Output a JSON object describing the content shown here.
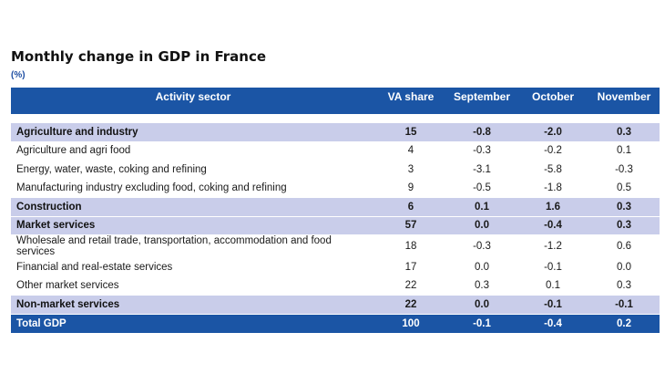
{
  "title": "Monthly change in GDP in France",
  "unit": "(%)",
  "table": {
    "headers": [
      "Activity sector",
      "VA share",
      "September",
      "October",
      "November"
    ],
    "rows": [
      {
        "kind": "group",
        "label": "Agriculture and industry",
        "va": "15",
        "sep": "-0.8",
        "oct": "-2.0",
        "nov": "0.3"
      },
      {
        "kind": "sub",
        "label": "Agriculture and agri food",
        "va": "4",
        "sep": "-0.3",
        "oct": "-0.2",
        "nov": "0.1"
      },
      {
        "kind": "sub",
        "label": "Energy, water, waste, coking and refining",
        "va": "3",
        "sep": "-3.1",
        "oct": "-5.8",
        "nov": "-0.3"
      },
      {
        "kind": "sub",
        "label": "Manufacturing industry excluding food, coking and refining",
        "va": "9",
        "sep": "-0.5",
        "oct": "-1.8",
        "nov": "0.5"
      },
      {
        "kind": "group",
        "label": "Construction",
        "va": "6",
        "sep": "0.1",
        "oct": "1.6",
        "nov": "0.3"
      },
      {
        "kind": "group",
        "label": "Market services",
        "va": "57",
        "sep": "0.0",
        "oct": "-0.4",
        "nov": "0.3"
      },
      {
        "kind": "sub",
        "label": "Wholesale and retail trade, transportation, accommodation and food services",
        "va": "18",
        "sep": "-0.3",
        "oct": "-1.2",
        "nov": "0.6"
      },
      {
        "kind": "sub",
        "label": "Financial and real-estate services",
        "va": "17",
        "sep": "0.0",
        "oct": "-0.1",
        "nov": "0.0"
      },
      {
        "kind": "sub",
        "label": "Other market services",
        "va": "22",
        "sep": "0.3",
        "oct": "0.1",
        "nov": "0.3"
      },
      {
        "kind": "group",
        "label": "Non-market services",
        "va": "22",
        "sep": "0.0",
        "oct": "-0.1",
        "nov": "-0.1"
      },
      {
        "kind": "total",
        "label": "Total GDP",
        "va": "100",
        "sep": "-0.1",
        "oct": "-0.4",
        "nov": "0.2"
      }
    ]
  }
}
